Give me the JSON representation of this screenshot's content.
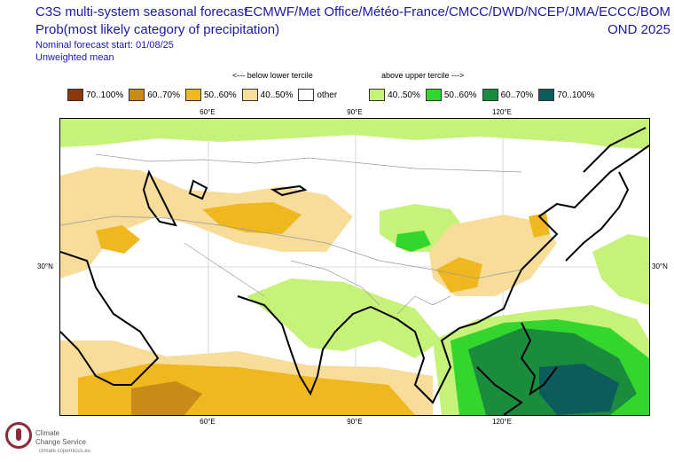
{
  "header": {
    "title_line1": "C3S multi-system seasonal forecast",
    "title_line2": "Prob(most likely category of precipitation)",
    "start": "Nominal forecast start: 01/08/25",
    "mean": "Unweighted mean",
    "centres": "ECMWF/Met Office/Météo-France/CMCC/DWD/NCEP/JMA/ECCC/BOM",
    "season": "OND 2025"
  },
  "legend": {
    "below_label": "<--- below lower tercile",
    "above_label": "above upper tercile --->",
    "items": [
      {
        "label": "70..100%",
        "color": "#8b3a0f"
      },
      {
        "label": "60..70%",
        "color": "#c98a1a"
      },
      {
        "label": "50..60%",
        "color": "#f0b81e"
      },
      {
        "label": "40..50%",
        "color": "#f7dc9a"
      },
      {
        "label": "other",
        "color": "#ffffff"
      },
      {
        "label": "40..50%",
        "color": "#c6f27a"
      },
      {
        "label": "50..60%",
        "color": "#34d62e"
      },
      {
        "label": "60..70%",
        "color": "#1a8c3c"
      },
      {
        "label": "70..100%",
        "color": "#0d5c5c"
      }
    ]
  },
  "axes": {
    "lon_top": [
      "60°E",
      "90°E",
      "120°E"
    ],
    "lon_bottom": [
      "60°E",
      "90°E",
      "120°E"
    ],
    "lat_left": "30°N",
    "lat_right": "30°N"
  },
  "logo": {
    "line1": "Climate",
    "line2": "Change Service",
    "url": "climate.copernicus.eu"
  }
}
